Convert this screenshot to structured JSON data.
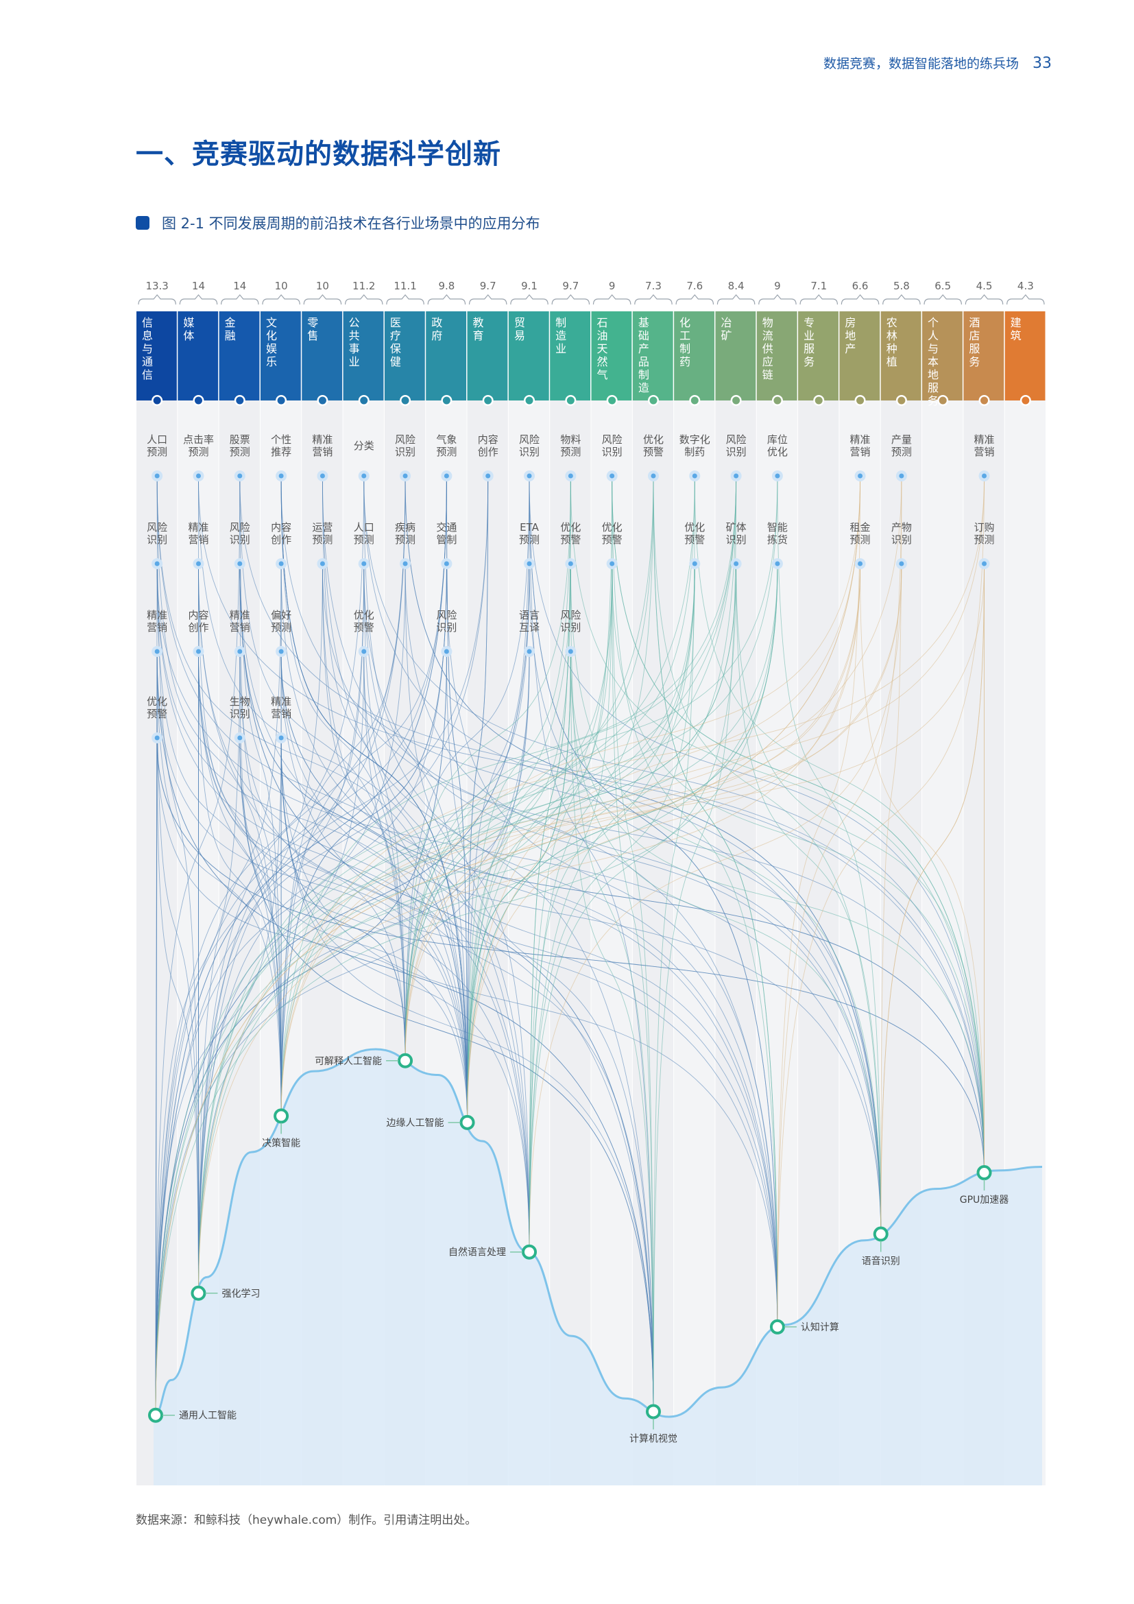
{
  "header": {
    "running_title": "数据竞赛，数据智能落地的练兵场",
    "page_number": "33"
  },
  "section_title": "一、竞赛驱动的数据科学创新",
  "figure_caption": "图 2-1 不同发展周期的前沿技术在各行业场景中的应用分布",
  "source_note": "数据来源：和鲸科技（heywhale.com）制作。引用请注明出处。",
  "chart_data": {
    "type": "hype-cycle-flow",
    "industries": [
      {
        "name": "信息与通信",
        "value": "13.3",
        "color": "#0d47a1"
      },
      {
        "name": "媒体",
        "value": "14",
        "color": "#1150a8"
      },
      {
        "name": "金融",
        "value": "14",
        "color": "#1559ad"
      },
      {
        "name": "文化娱乐",
        "value": "10",
        "color": "#1a64ae"
      },
      {
        "name": "零售",
        "value": "10",
        "color": "#1f6fad"
      },
      {
        "name": "公共事业",
        "value": "11.2",
        "color": "#237aab"
      },
      {
        "name": "医疗保健",
        "value": "11.1",
        "color": "#2785a8"
      },
      {
        "name": "政府",
        "value": "9.8",
        "color": "#2b90a5"
      },
      {
        "name": "教育",
        "value": "9.7",
        "color": "#2f9ba0"
      },
      {
        "name": "贸易",
        "value": "9.1",
        "color": "#34a49c"
      },
      {
        "name": "制造业",
        "value": "9.7",
        "color": "#3aac97"
      },
      {
        "name": "石油天然气",
        "value": "9",
        "color": "#43b38f"
      },
      {
        "name": "基础产品制造",
        "value": "7.3",
        "color": "#55b48a"
      },
      {
        "name": "化工制药",
        "value": "7.6",
        "color": "#68b082"
      },
      {
        "name": "冶矿",
        "value": "8.4",
        "color": "#79ab7b"
      },
      {
        "name": "物流供应链",
        "value": "9",
        "color": "#88a774"
      },
      {
        "name": "专业服务",
        "value": "7.1",
        "color": "#94a46d"
      },
      {
        "name": "房地产",
        "value": "6.6",
        "color": "#9e9f67"
      },
      {
        "name": "农林种植",
        "value": "5.8",
        "color": "#aa9960"
      },
      {
        "name": "个人与本地服务",
        "value": "6.5",
        "color": "#b69259"
      },
      {
        "name": "酒店服务",
        "value": "4.5",
        "color": "#c88a4e"
      },
      {
        "name": "建筑",
        "value": "4.3",
        "color": "#e07b33"
      }
    ],
    "scenarios": [
      [
        "人口预测",
        "风险识别",
        "精准营销",
        "优化预警"
      ],
      [
        "点击率预测",
        "精准营销",
        "内容创作"
      ],
      [
        "股票预测",
        "风险识别",
        "精准营销",
        "生物识别"
      ],
      [
        "个性推荐",
        "内容创作",
        "偏好预测",
        "精准营销"
      ],
      [
        "精准营销",
        "运营预测"
      ],
      [
        "分类",
        "人口预测",
        "优化预警"
      ],
      [
        "风险识别",
        "疾病预测"
      ],
      [
        "气象预测",
        "交通管制",
        "风险识别"
      ],
      [
        "内容创作"
      ],
      [
        "风险识别",
        "ETA预测",
        "语言互译"
      ],
      [
        "物料预测",
        "优化预警",
        "风险识别"
      ],
      [
        "风险识别",
        "优化预警"
      ],
      [
        "优化预警"
      ],
      [
        "数字化制药",
        "优化预警"
      ],
      [
        "风险识别",
        "矿体识别"
      ],
      [
        "库位优化",
        "智能拣货"
      ],
      [],
      [
        "精准营销",
        "租金预测"
      ],
      [
        "产量预测",
        "产物识别"
      ],
      [],
      [
        "精准营销",
        "订购预测"
      ],
      []
    ],
    "technologies": [
      {
        "name": "通用人工智能",
        "col": 0,
        "curve": 0.0,
        "label_side": "right"
      },
      {
        "name": "强化学习",
        "col": 1,
        "curve": 0.18,
        "label_side": "right"
      },
      {
        "name": "决策智能",
        "col": 3,
        "curve": 0.5,
        "label_side": "below"
      },
      {
        "name": "可解释人工智能",
        "col": 6,
        "curve": 0.79,
        "label_side": "left"
      },
      {
        "name": "边缘人工智能",
        "col": 7.5,
        "curve": 0.85,
        "label_side": "left"
      },
      {
        "name": "自然语言处理",
        "col": 9,
        "curve": 0.58,
        "label_side": "left"
      },
      {
        "name": "计算机视觉",
        "col": 12,
        "curve": 0.05,
        "label_side": "below"
      },
      {
        "name": "认知计算",
        "col": 15,
        "curve": 0.38,
        "label_side": "right"
      },
      {
        "name": "语音识别",
        "col": 17.5,
        "curve": 0.62,
        "label_side": "below"
      },
      {
        "name": "GPU加速器",
        "col": 20,
        "curve": 0.75,
        "label_side": "below"
      }
    ],
    "curve": {
      "shape": "technology hype cycle",
      "fill_color": "#dbeaf8",
      "line_color": "#7ec3ea"
    },
    "link_colors": [
      "#4a7db5",
      "#5fb3a6",
      "#d9b98a"
    ]
  }
}
